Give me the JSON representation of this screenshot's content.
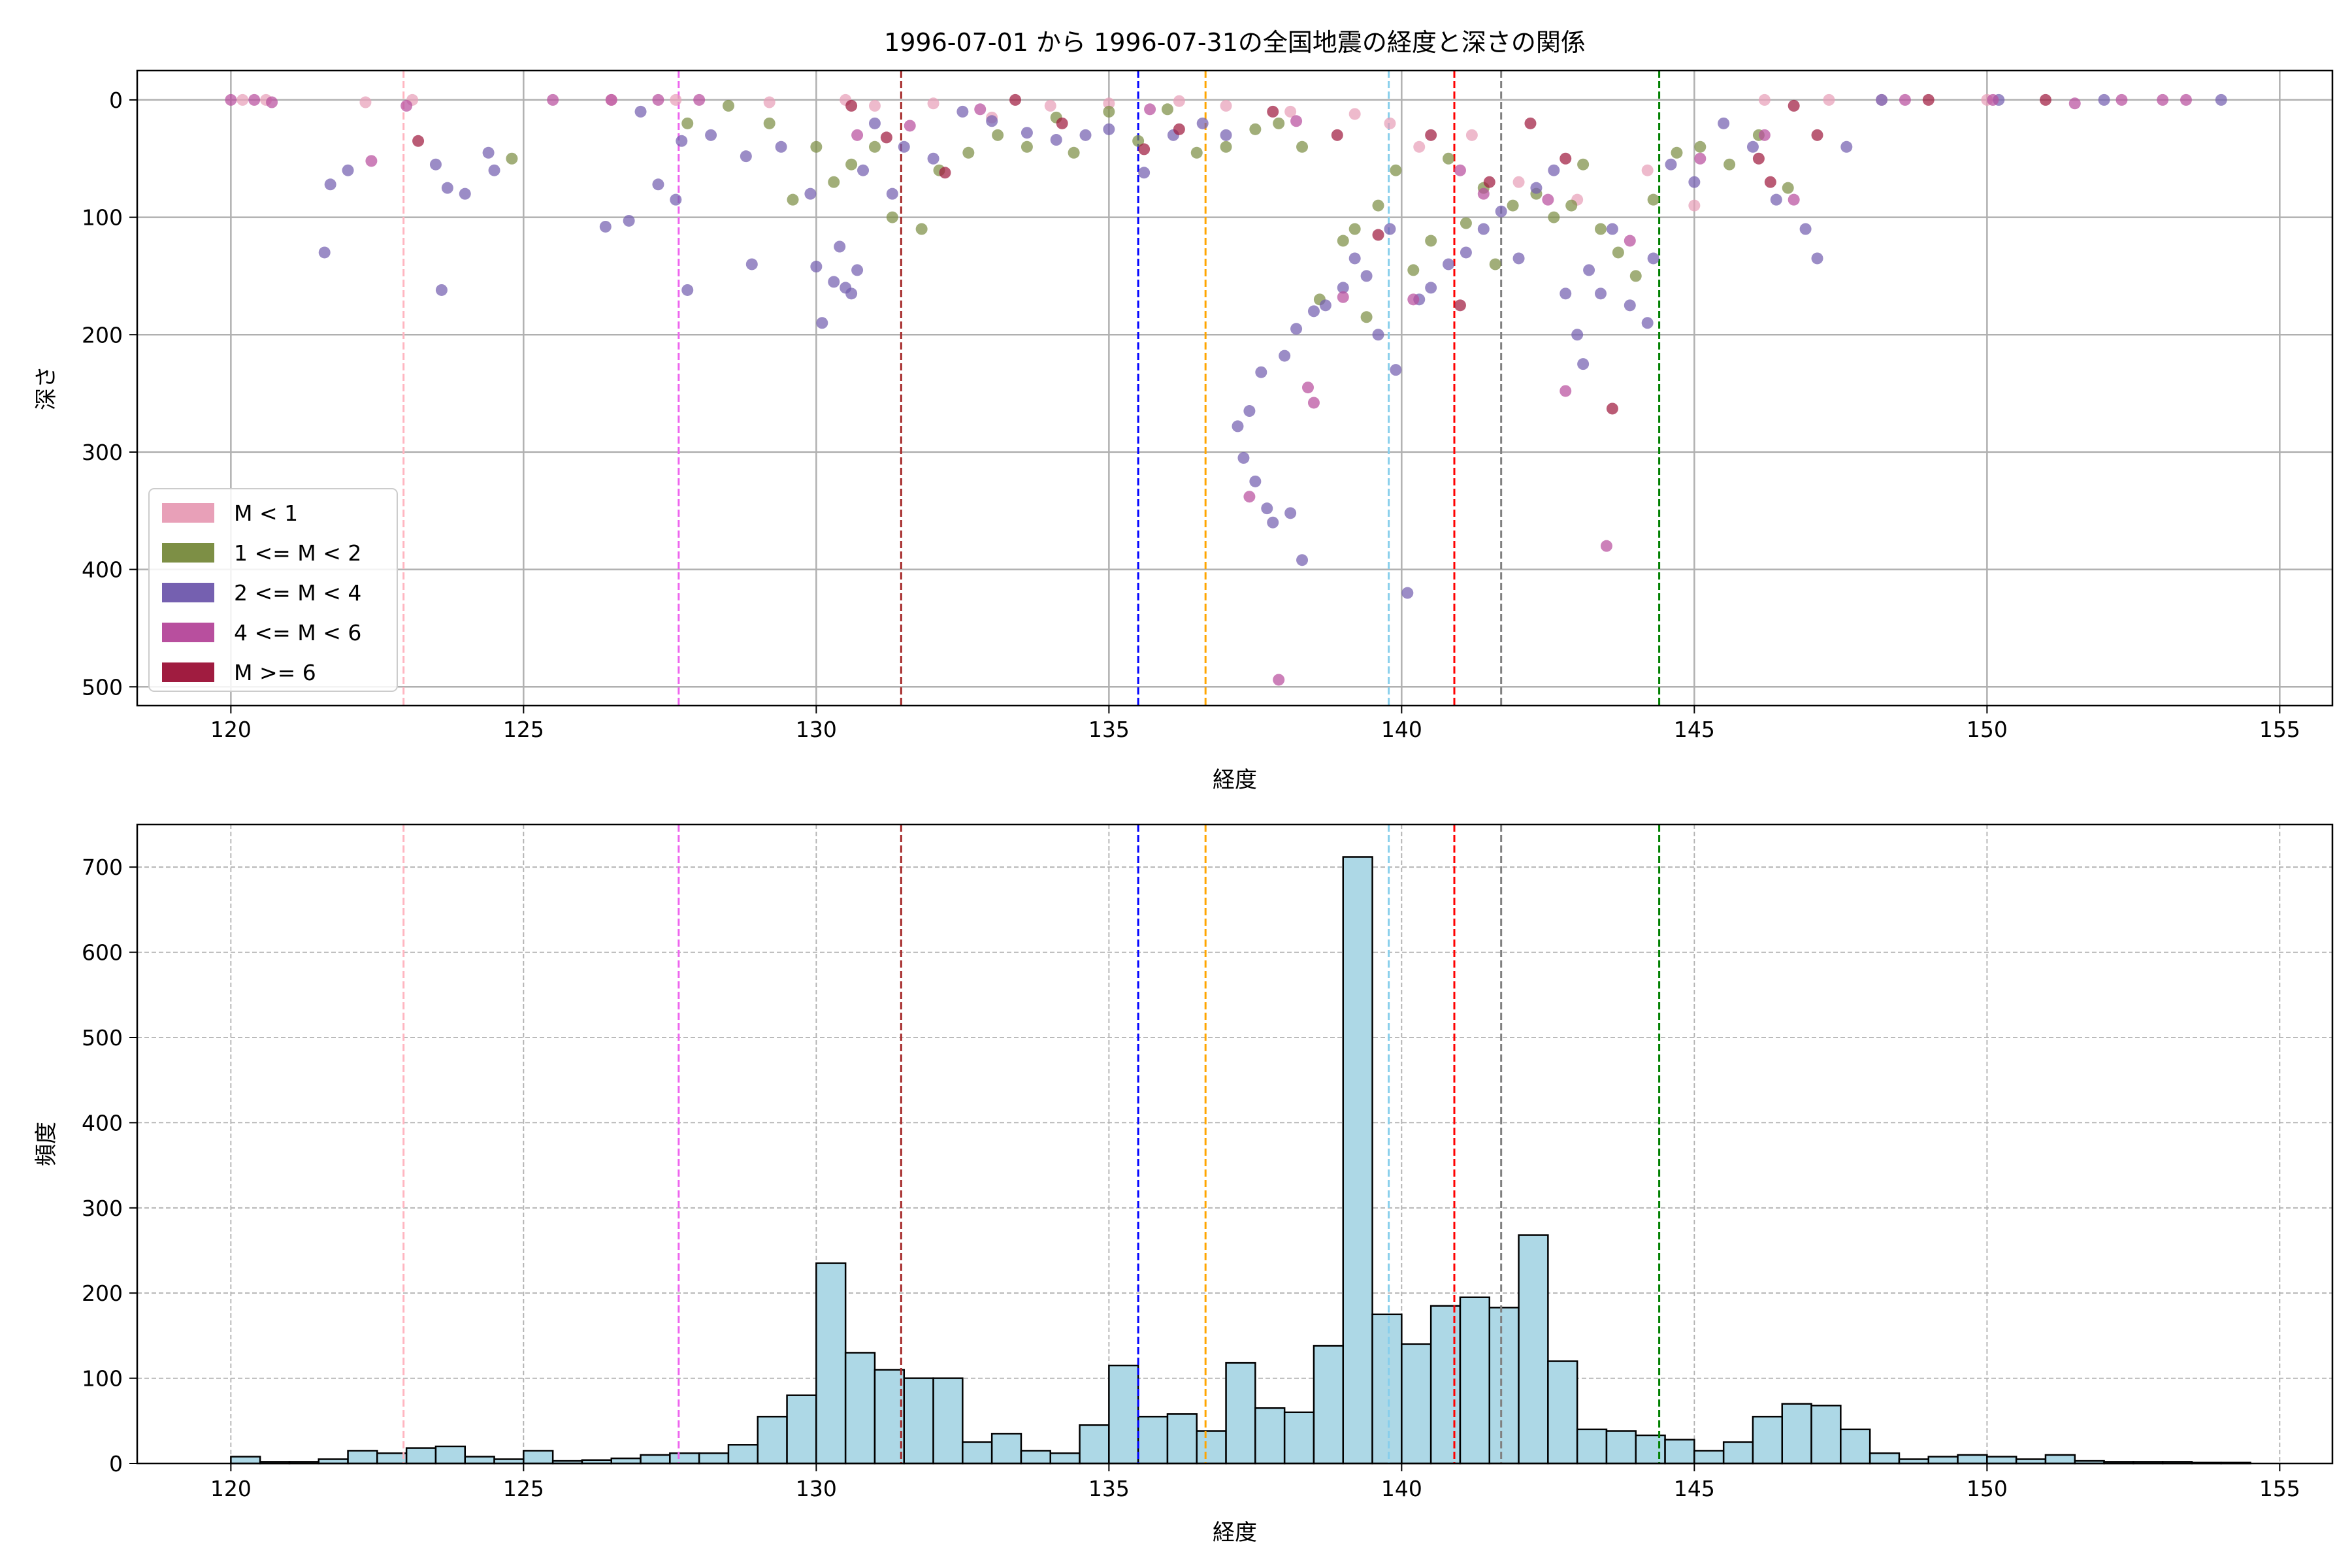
{
  "title": "1996-07-01 から 1996-07-31の全国地震の経度と深さの関係",
  "colors": {
    "m_lt1": "#e8a0b8",
    "m_1_2": "#7d8f45",
    "m_2_4": "#7560b0",
    "m_4_6": "#b84f9e",
    "m_ge6": "#a01c40",
    "hist_fill": "#add8e6",
    "hist_edge": "#000000",
    "grid": "#b0b0b0"
  },
  "chart_data": [
    {
      "type": "scatter",
      "xlabel": "経度",
      "ylabel": "深さ",
      "xlim": [
        118.4,
        155.9
      ],
      "ylim": [
        516,
        -25
      ],
      "y_inverted": true,
      "xticks": [
        120,
        125,
        130,
        135,
        140,
        145,
        150,
        155
      ],
      "yticks": [
        0,
        100,
        200,
        300,
        400,
        500
      ],
      "grid": true,
      "legend_position": "lower-left",
      "legend": [
        "M < 1",
        "1 <= M < 2",
        "2 <= M < 4",
        "4 <= M < 6",
        "M >= 6"
      ],
      "series": [
        {
          "name": "M < 1",
          "color_key": "m_lt1",
          "points": [
            [
              120.2,
              0
            ],
            [
              120.6,
              0
            ],
            [
              122.3,
              2
            ],
            [
              123.1,
              0
            ],
            [
              126.5,
              0
            ],
            [
              127.6,
              0
            ],
            [
              129.2,
              2
            ],
            [
              130.5,
              0
            ],
            [
              131.0,
              5
            ],
            [
              132.0,
              3
            ],
            [
              133.0,
              15
            ],
            [
              134.0,
              5
            ],
            [
              135.0,
              3
            ],
            [
              136.2,
              1
            ],
            [
              137.0,
              5
            ],
            [
              138.1,
              10
            ],
            [
              139.2,
              12
            ],
            [
              139.8,
              20
            ],
            [
              140.3,
              40
            ],
            [
              141.2,
              30
            ],
            [
              142.0,
              70
            ],
            [
              143.0,
              85
            ],
            [
              144.2,
              60
            ],
            [
              145.0,
              90
            ],
            [
              146.2,
              0
            ],
            [
              147.3,
              0
            ],
            [
              148.2,
              0
            ],
            [
              150.0,
              0
            ]
          ]
        },
        {
          "name": "1 <= M < 2",
          "color_key": "m_1_2",
          "points": [
            [
              124.8,
              50
            ],
            [
              127.8,
              20
            ],
            [
              128.5,
              5
            ],
            [
              129.2,
              20
            ],
            [
              129.6,
              85
            ],
            [
              130.0,
              40
            ],
            [
              130.3,
              70
            ],
            [
              130.6,
              55
            ],
            [
              131.0,
              40
            ],
            [
              131.3,
              100
            ],
            [
              131.8,
              110
            ],
            [
              132.1,
              60
            ],
            [
              132.6,
              45
            ],
            [
              133.1,
              30
            ],
            [
              133.6,
              40
            ],
            [
              134.1,
              15
            ],
            [
              134.4,
              45
            ],
            [
              135.0,
              10
            ],
            [
              135.5,
              35
            ],
            [
              136.0,
              8
            ],
            [
              136.5,
              45
            ],
            [
              137.0,
              40
            ],
            [
              137.5,
              25
            ],
            [
              137.9,
              20
            ],
            [
              138.3,
              40
            ],
            [
              138.6,
              170
            ],
            [
              139.0,
              120
            ],
            [
              139.2,
              110
            ],
            [
              139.4,
              185
            ],
            [
              139.6,
              90
            ],
            [
              139.9,
              60
            ],
            [
              140.2,
              145
            ],
            [
              140.5,
              120
            ],
            [
              140.8,
              50
            ],
            [
              141.1,
              105
            ],
            [
              141.4,
              75
            ],
            [
              141.6,
              140
            ],
            [
              141.9,
              90
            ],
            [
              142.3,
              80
            ],
            [
              142.6,
              100
            ],
            [
              142.9,
              90
            ],
            [
              143.1,
              55
            ],
            [
              143.4,
              110
            ],
            [
              143.7,
              130
            ],
            [
              144.0,
              150
            ],
            [
              144.3,
              85
            ],
            [
              144.7,
              45
            ],
            [
              145.1,
              40
            ],
            [
              145.6,
              55
            ],
            [
              146.1,
              30
            ],
            [
              146.6,
              75
            ]
          ]
        },
        {
          "name": "2 <= M < 4",
          "color_key": "m_2_4",
          "points": [
            [
              121.6,
              130
            ],
            [
              121.7,
              72
            ],
            [
              122.0,
              60
            ],
            [
              123.5,
              55
            ],
            [
              123.6,
              162
            ],
            [
              123.7,
              75
            ],
            [
              124.0,
              80
            ],
            [
              124.4,
              45
            ],
            [
              124.5,
              60
            ],
            [
              126.4,
              108
            ],
            [
              126.8,
              103
            ],
            [
              127.0,
              10
            ],
            [
              127.3,
              72
            ],
            [
              127.6,
              85
            ],
            [
              127.7,
              35
            ],
            [
              127.8,
              162
            ],
            [
              128.2,
              30
            ],
            [
              128.8,
              48
            ],
            [
              128.9,
              140
            ],
            [
              129.4,
              40
            ],
            [
              129.9,
              80
            ],
            [
              130.0,
              142
            ],
            [
              130.1,
              190
            ],
            [
              130.3,
              155
            ],
            [
              130.4,
              125
            ],
            [
              130.5,
              160
            ],
            [
              130.6,
              165
            ],
            [
              130.7,
              145
            ],
            [
              130.8,
              60
            ],
            [
              131.0,
              20
            ],
            [
              131.3,
              80
            ],
            [
              131.5,
              40
            ],
            [
              132.0,
              50
            ],
            [
              132.5,
              10
            ],
            [
              133.0,
              18
            ],
            [
              133.6,
              28
            ],
            [
              134.1,
              34
            ],
            [
              134.6,
              30
            ],
            [
              135.0,
              25
            ],
            [
              135.6,
              62
            ],
            [
              136.1,
              30
            ],
            [
              136.6,
              20
            ],
            [
              137.0,
              30
            ],
            [
              137.2,
              278
            ],
            [
              137.3,
              305
            ],
            [
              137.4,
              265
            ],
            [
              137.5,
              325
            ],
            [
              137.6,
              232
            ],
            [
              137.7,
              348
            ],
            [
              137.8,
              360
            ],
            [
              138.0,
              218
            ],
            [
              138.1,
              352
            ],
            [
              138.2,
              195
            ],
            [
              138.3,
              392
            ],
            [
              138.5,
              180
            ],
            [
              138.7,
              175
            ],
            [
              139.0,
              160
            ],
            [
              139.2,
              135
            ],
            [
              139.4,
              150
            ],
            [
              139.6,
              200
            ],
            [
              139.8,
              110
            ],
            [
              139.9,
              230
            ],
            [
              140.1,
              420
            ],
            [
              140.3,
              170
            ],
            [
              140.5,
              160
            ],
            [
              140.8,
              140
            ],
            [
              141.1,
              130
            ],
            [
              141.4,
              110
            ],
            [
              141.7,
              95
            ],
            [
              142.0,
              135
            ],
            [
              142.3,
              75
            ],
            [
              142.6,
              60
            ],
            [
              142.8,
              165
            ],
            [
              143.0,
              200
            ],
            [
              143.1,
              225
            ],
            [
              143.2,
              145
            ],
            [
              143.4,
              165
            ],
            [
              143.6,
              110
            ],
            [
              143.9,
              175
            ],
            [
              144.2,
              190
            ],
            [
              144.3,
              135
            ],
            [
              144.6,
              55
            ],
            [
              145.0,
              70
            ],
            [
              145.5,
              20
            ],
            [
              146.0,
              40
            ],
            [
              146.4,
              85
            ],
            [
              146.9,
              110
            ],
            [
              147.1,
              135
            ],
            [
              147.6,
              40
            ],
            [
              148.2,
              0
            ],
            [
              150.2,
              0
            ],
            [
              152.0,
              0
            ],
            [
              154.0,
              0
            ]
          ]
        },
        {
          "name": "4 <= M < 6",
          "color_key": "m_4_6",
          "points": [
            [
              120.0,
              0
            ],
            [
              120.4,
              0
            ],
            [
              120.7,
              2
            ],
            [
              122.4,
              52
            ],
            [
              123.0,
              5
            ],
            [
              125.5,
              0
            ],
            [
              126.5,
              0
            ],
            [
              127.3,
              0
            ],
            [
              128.0,
              0
            ],
            [
              130.7,
              30
            ],
            [
              131.6,
              22
            ],
            [
              132.8,
              8
            ],
            [
              135.7,
              8
            ],
            [
              137.4,
              338
            ],
            [
              137.9,
              494
            ],
            [
              138.2,
              18
            ],
            [
              138.4,
              245
            ],
            [
              138.5,
              258
            ],
            [
              139.0,
              168
            ],
            [
              140.2,
              170
            ],
            [
              141.0,
              60
            ],
            [
              141.4,
              80
            ],
            [
              142.5,
              85
            ],
            [
              142.8,
              248
            ],
            [
              143.5,
              380
            ],
            [
              143.9,
              120
            ],
            [
              145.1,
              50
            ],
            [
              146.2,
              30
            ],
            [
              146.7,
              85
            ],
            [
              148.6,
              0
            ],
            [
              150.1,
              0
            ],
            [
              151.5,
              3
            ],
            [
              152.3,
              0
            ],
            [
              153.0,
              0
            ],
            [
              153.4,
              0
            ]
          ]
        },
        {
          "name": "M >= 6",
          "color_key": "m_ge6",
          "points": [
            [
              123.2,
              35
            ],
            [
              130.6,
              5
            ],
            [
              131.2,
              32
            ],
            [
              132.2,
              62
            ],
            [
              133.4,
              0
            ],
            [
              134.2,
              20
            ],
            [
              135.6,
              42
            ],
            [
              136.2,
              25
            ],
            [
              137.8,
              10
            ],
            [
              138.9,
              30
            ],
            [
              139.6,
              115
            ],
            [
              140.5,
              30
            ],
            [
              141.0,
              175
            ],
            [
              141.5,
              70
            ],
            [
              142.2,
              20
            ],
            [
              142.8,
              50
            ],
            [
              143.6,
              263
            ],
            [
              146.1,
              50
            ],
            [
              146.3,
              70
            ],
            [
              146.7,
              5
            ],
            [
              147.1,
              30
            ],
            [
              149.0,
              0
            ],
            [
              151.0,
              0
            ]
          ]
        }
      ],
      "vlines": [
        {
          "x": 122.95,
          "color": "#ffb6c1"
        },
        {
          "x": 127.65,
          "color": "#ee66ee"
        },
        {
          "x": 131.45,
          "color": "#a52a2a"
        },
        {
          "x": 135.5,
          "color": "#0000ff"
        },
        {
          "x": 136.65,
          "color": "#ffa500"
        },
        {
          "x": 139.78,
          "color": "#87ceeb"
        },
        {
          "x": 140.9,
          "color": "#ff0000"
        },
        {
          "x": 141.7,
          "color": "#808080"
        },
        {
          "x": 144.4,
          "color": "#008000"
        }
      ]
    },
    {
      "type": "bar",
      "subtype": "histogram",
      "xlabel": "経度",
      "ylabel": "頻度",
      "xlim": [
        118.4,
        155.9
      ],
      "ylim": [
        0,
        750
      ],
      "xticks": [
        120,
        125,
        130,
        135,
        140,
        145,
        150,
        155
      ],
      "yticks": [
        0,
        100,
        200,
        300,
        400,
        500,
        600,
        700
      ],
      "grid": true,
      "bin_start": 120.0,
      "bin_width": 0.5,
      "values": [
        8,
        2,
        2,
        5,
        15,
        12,
        18,
        20,
        8,
        5,
        15,
        3,
        4,
        6,
        10,
        12,
        12,
        22,
        55,
        80,
        235,
        130,
        110,
        100,
        100,
        25,
        35,
        15,
        12,
        45,
        115,
        55,
        58,
        38,
        118,
        65,
        60,
        138,
        712,
        175,
        140,
        185,
        195,
        183,
        268,
        120,
        40,
        38,
        33,
        28,
        15,
        25,
        55,
        70,
        68,
        40,
        12,
        5,
        8,
        10,
        8,
        5,
        10,
        3,
        2,
        2,
        2,
        1,
        1,
        0
      ]
    }
  ]
}
